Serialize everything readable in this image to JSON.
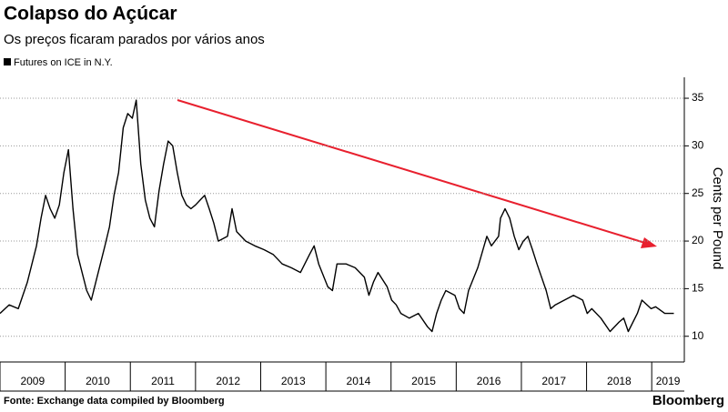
{
  "chart_data": {
    "type": "line",
    "title": "Colapso do Açúcar",
    "subtitle": "Os preços ficaram parados por vários anos",
    "source": "Fonte:  Exchange data compiled by Bloomberg",
    "brand": "Bloomberg",
    "y_label": "Cents per Pound",
    "series": [
      {
        "name": "Futures on ICE in N.Y.",
        "color": "#000000",
        "x": [
          2009.0,
          2009.14,
          2009.28,
          2009.42,
          2009.56,
          2009.63,
          2009.7,
          2009.77,
          2009.84,
          2009.91,
          2009.98,
          2010.05,
          2010.12,
          2010.19,
          2010.26,
          2010.33,
          2010.4,
          2010.47,
          2010.54,
          2010.61,
          2010.68,
          2010.75,
          2010.82,
          2010.89,
          2010.96,
          2011.03,
          2011.09,
          2011.16,
          2011.23,
          2011.3,
          2011.37,
          2011.44,
          2011.51,
          2011.58,
          2011.65,
          2011.72,
          2011.79,
          2011.86,
          2011.93,
          2012.0,
          2012.07,
          2012.14,
          2012.21,
          2012.28,
          2012.35,
          2012.49,
          2012.56,
          2012.63,
          2012.77,
          2012.91,
          2013.05,
          2013.19,
          2013.33,
          2013.47,
          2013.61,
          2013.75,
          2013.82,
          2013.89,
          2014.03,
          2014.1,
          2014.17,
          2014.31,
          2014.45,
          2014.59,
          2014.66,
          2014.73,
          2014.8,
          2014.94,
          2015.01,
          2015.08,
          2015.15,
          2015.28,
          2015.42,
          2015.56,
          2015.63,
          2015.7,
          2015.77,
          2015.84,
          2015.98,
          2016.05,
          2016.12,
          2016.19,
          2016.33,
          2016.47,
          2016.54,
          2016.65,
          2016.68,
          2016.75,
          2016.82,
          2016.89,
          2016.96,
          2017.03,
          2017.1,
          2017.17,
          2017.24,
          2017.38,
          2017.45,
          2017.52,
          2017.66,
          2017.8,
          2017.94,
          2018.01,
          2018.08,
          2018.22,
          2018.36,
          2018.5,
          2018.57,
          2018.64,
          2018.78,
          2018.85,
          2018.99,
          2019.06,
          2019.2,
          2019.34
        ],
        "values": [
          12.4,
          13.3,
          12.9,
          15.7,
          19.5,
          22.4,
          24.8,
          23.4,
          22.4,
          23.8,
          27.2,
          29.6,
          23.4,
          18.6,
          16.7,
          14.8,
          13.8,
          15.7,
          17.6,
          19.5,
          21.5,
          24.8,
          27.2,
          31.9,
          33.4,
          32.9,
          34.8,
          28.1,
          24.3,
          22.4,
          21.5,
          25.3,
          28.1,
          30.5,
          30.0,
          27.2,
          24.8,
          23.8,
          23.4,
          23.8,
          24.3,
          24.8,
          23.4,
          21.9,
          20.0,
          20.5,
          23.4,
          21.0,
          20.0,
          19.5,
          19.1,
          18.6,
          17.6,
          17.2,
          16.7,
          18.6,
          19.5,
          17.6,
          15.2,
          14.8,
          17.6,
          17.6,
          17.2,
          16.2,
          14.3,
          15.7,
          16.7,
          15.2,
          13.8,
          13.3,
          12.4,
          11.9,
          12.4,
          11.0,
          10.5,
          12.4,
          13.8,
          14.8,
          14.3,
          12.9,
          12.4,
          14.8,
          17.2,
          20.5,
          19.5,
          20.5,
          22.4,
          23.4,
          22.4,
          20.5,
          19.1,
          20.0,
          20.5,
          19.1,
          17.6,
          14.8,
          12.9,
          13.3,
          13.8,
          14.3,
          13.8,
          12.4,
          12.9,
          11.9,
          10.5,
          11.5,
          11.9,
          10.5,
          12.4,
          13.8,
          12.9,
          13.1,
          12.4,
          12.4
        ]
      }
    ],
    "xlim": [
      2009,
      2019.5
    ],
    "xticks": [
      2009,
      2010,
      2011,
      2012,
      2013,
      2014,
      2015,
      2016,
      2017,
      2018,
      2019
    ],
    "ylim": [
      7.3,
      37.2
    ],
    "yticks": [
      10,
      15,
      20,
      25,
      30,
      35
    ],
    "grid": true
  }
}
